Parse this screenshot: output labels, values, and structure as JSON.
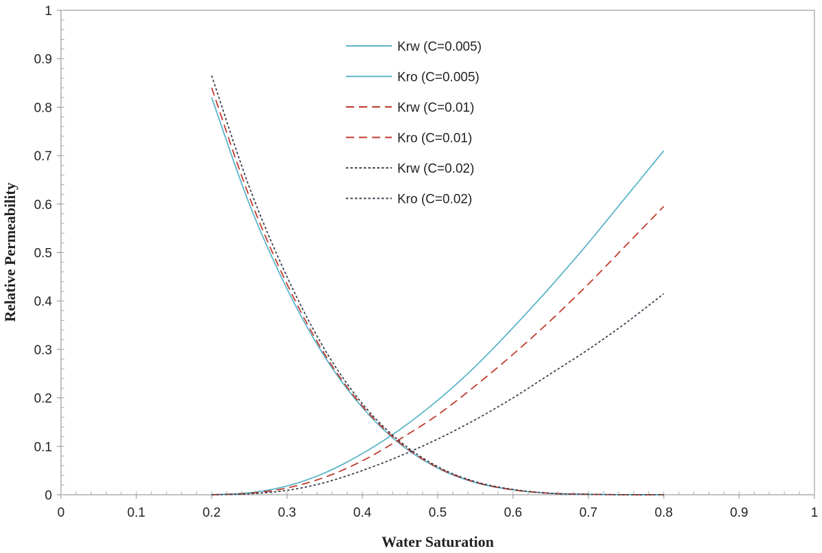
{
  "chart_data": {
    "type": "line",
    "title": "",
    "xlabel": "Water Saturation",
    "ylabel": "Relative Permeability",
    "xlim": [
      0,
      1
    ],
    "ylim": [
      0,
      1
    ],
    "xticks": [
      "0",
      "0.1",
      "0.2",
      "0.3",
      "0.4",
      "0.5",
      "0.6",
      "0.7",
      "0.8",
      "0.9",
      "1"
    ],
    "yticks": [
      "0",
      "0.1",
      "0.2",
      "0.3",
      "0.4",
      "0.5",
      "0.6",
      "0.7",
      "0.8",
      "0.9",
      "1"
    ],
    "grid": false,
    "legend_position": "top-center",
    "x": [
      0.2,
      0.25,
      0.3,
      0.35,
      0.4,
      0.45,
      0.5,
      0.55,
      0.6,
      0.65,
      0.7,
      0.75,
      0.8
    ],
    "series": [
      {
        "name": "Krw (C=0.005)",
        "color": "#5ab4c8",
        "style": "solid",
        "values": [
          0.0,
          0.004,
          0.018,
          0.045,
          0.085,
          0.135,
          0.195,
          0.265,
          0.345,
          0.43,
          0.52,
          0.615,
          0.71
        ]
      },
      {
        "name": "Kro (C=0.005)",
        "color": "#5ab4c8",
        "style": "solid",
        "values": [
          0.82,
          0.6,
          0.425,
          0.285,
          0.18,
          0.105,
          0.055,
          0.025,
          0.01,
          0.003,
          0.001,
          0.0,
          0.0
        ]
      },
      {
        "name": "Krw (C=0.01)",
        "color": "#c0392b",
        "style": "dashed",
        "values": [
          0.0,
          0.003,
          0.014,
          0.036,
          0.07,
          0.115,
          0.165,
          0.225,
          0.29,
          0.36,
          0.435,
          0.515,
          0.595
        ]
      },
      {
        "name": "Kro (C=0.01)",
        "color": "#c0392b",
        "style": "dashed",
        "values": [
          0.84,
          0.615,
          0.435,
          0.29,
          0.183,
          0.107,
          0.056,
          0.026,
          0.01,
          0.003,
          0.001,
          0.0,
          0.0
        ]
      },
      {
        "name": "Krw (C=0.02)",
        "color": "#3a4250",
        "style": "dotted",
        "values": [
          0.0,
          0.002,
          0.009,
          0.025,
          0.05,
          0.08,
          0.115,
          0.155,
          0.2,
          0.25,
          0.3,
          0.355,
          0.415
        ]
      },
      {
        "name": "Kro (C=0.02)",
        "color": "#3a4250",
        "style": "dotted",
        "values": [
          0.865,
          0.635,
          0.45,
          0.3,
          0.188,
          0.11,
          0.058,
          0.027,
          0.011,
          0.003,
          0.001,
          0.0,
          0.0
        ]
      }
    ]
  }
}
